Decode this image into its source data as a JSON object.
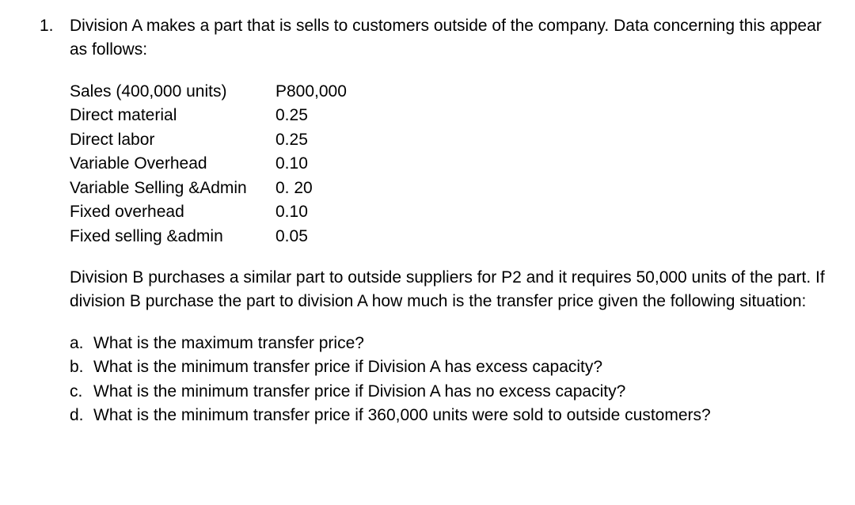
{
  "question": {
    "number": "1.",
    "intro": "Division A makes a part that is sells to customers outside of the company. Data concerning this appear as follows:",
    "table_rows": [
      {
        "label": "Sales (400,000 units)",
        "value": "P800,000"
      },
      {
        "label": "Direct material",
        "value": "0.25"
      },
      {
        "label": "Direct labor",
        "value": "0.25"
      },
      {
        "label": "Variable Overhead",
        "value": "0.10"
      },
      {
        "label": "Variable Selling &Admin",
        "value": "0. 20"
      },
      {
        "label": "Fixed overhead",
        "value": "0.10"
      },
      {
        "label": "Fixed selling &admin",
        "value": "0.05"
      }
    ],
    "middle": "Division B purchases a similar part to outside suppliers for P2 and it requires 50,000 units of the part. If division B purchase the part to division A how much is the transfer price given the following situation:",
    "subitems": [
      {
        "marker": "a.",
        "text": "What is the maximum transfer price?"
      },
      {
        "marker": "b.",
        "text": "What is the minimum transfer price if Division A has excess capacity?"
      },
      {
        "marker": "c.",
        "text": "What is the minimum transfer price if Division A has no excess capacity?"
      },
      {
        "marker": "d.",
        "text": "What is the minimum transfer price if 360,000 units were sold to outside customers?"
      }
    ]
  }
}
